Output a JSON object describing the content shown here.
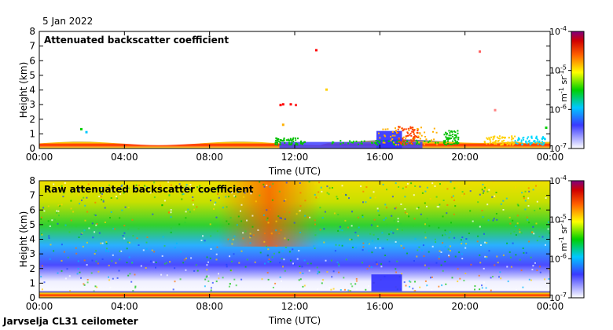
{
  "header": {
    "date": "5 Jan 2022"
  },
  "footer": {
    "instrument": "Jarvselja CL31 ceilometer"
  },
  "chart_data": [
    {
      "type": "heatmap",
      "title": "Attenuated backscatter coefficient",
      "xlabel": "Time (UTC)",
      "ylabel": "Height (km)",
      "x_ticks": [
        "00:00",
        "04:00",
        "08:00",
        "12:00",
        "16:00",
        "20:00",
        "00:00"
      ],
      "y_ticks": [
        0,
        1,
        2,
        3,
        4,
        5,
        6,
        7,
        8
      ],
      "ylim": [
        0,
        8
      ],
      "colorbar": {
        "label": "m-1 sr-1",
        "ticks": [
          "10-7",
          "10-6",
          "10-5",
          "10-4"
        ],
        "scale": "log",
        "range": [
          1e-07,
          0.0001
        ]
      },
      "description": "Strong aerosol backscatter confined below ~0.5 km all day; low cloud/aerosol features 0.5-1.6 km from 11:00 to 23:00; isolated returns near 3 km around 11:00."
    },
    {
      "type": "heatmap",
      "title": "Raw attenuated backscatter coefficient",
      "xlabel": "Time (UTC)",
      "ylabel": "Height (km)",
      "x_ticks": [
        "00:00",
        "04:00",
        "08:00",
        "12:00",
        "16:00",
        "20:00",
        "00:00"
      ],
      "y_ticks": [
        0,
        1,
        2,
        3,
        4,
        5,
        6,
        7,
        8
      ],
      "ylim": [
        0,
        8
      ],
      "colorbar": {
        "label": "m-1 sr-1",
        "ticks": [
          "10-7",
          "10-6",
          "10-5",
          "10-4"
        ],
        "scale": "log",
        "range": [
          1e-07,
          0.0001
        ]
      },
      "description": "Noisy raw signal increasing with height; strongest (red) near 10:00-12:00 above 5 km."
    }
  ]
}
